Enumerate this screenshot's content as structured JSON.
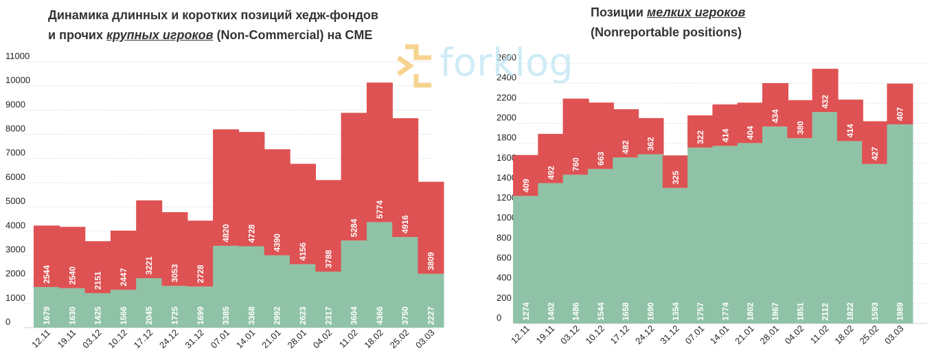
{
  "chart_data": [
    {
      "type": "bar",
      "stacked": true,
      "title_parts": {
        "line1": "Динамика длинных и коротких позиций хедж-фондов",
        "line2_pre": "и прочих ",
        "line2_em": "крупных игроков",
        "line2_post": " (Non-Commercial) на CME"
      },
      "categories": [
        "12.11",
        "19.11",
        "03.12",
        "10.12",
        "17.12",
        "24.12",
        "31.12",
        "07.01",
        "14.01",
        "21.01",
        "28.01",
        "04.02",
        "11.02",
        "18.02",
        "25.02",
        "03.03"
      ],
      "series": [
        {
          "color": "#8fc2a6",
          "values": [
            1679,
            1630,
            1425,
            1566,
            2045,
            1725,
            1699,
            3385,
            3368,
            2992,
            2623,
            2317,
            3604,
            4366,
            3750,
            2227
          ]
        },
        {
          "color": "#de5253",
          "values": [
            2544,
            2540,
            2151,
            2447,
            3221,
            3053,
            2728,
            4820,
            4728,
            4390,
            4156,
            3788,
            5284,
            5774,
            4916,
            3809
          ]
        }
      ],
      "yticks": [
        0,
        1000,
        2000,
        3000,
        4000,
        5000,
        6000,
        7000,
        8000,
        9000,
        10000,
        11000
      ],
      "ylim": [
        0,
        11000
      ],
      "grid": true
    },
    {
      "type": "bar",
      "stacked": true,
      "title_parts": {
        "line1_pre": "Позиции ",
        "line1_em": "мелких игроков",
        "line2": "(Nonreportable positions)"
      },
      "categories": [
        "12.11",
        "19.11",
        "03.12",
        "10.12",
        "17.12",
        "24.12",
        "31.12",
        "07.01",
        "14.01",
        "21.01",
        "28.01",
        "04.02",
        "11.02",
        "18.02",
        "25.02",
        "03.03"
      ],
      "series": [
        {
          "color": "#8fc2a6",
          "values": [
            1274,
            1402,
            1486,
            1544,
            1658,
            1690,
            1354,
            1757,
            1774,
            1802,
            1967,
            1851,
            2112,
            1822,
            1593,
            1989
          ]
        },
        {
          "color": "#de5253",
          "values": [
            409,
            492,
            760,
            663,
            482,
            362,
            325,
            322,
            414,
            404,
            434,
            380,
            432,
            414,
            427,
            407
          ]
        }
      ],
      "yticks": [
        0,
        200,
        400,
        600,
        800,
        1000,
        1200,
        1400,
        1600,
        1800,
        2000,
        2200,
        2400,
        2600
      ],
      "ylim": [
        0,
        2600
      ],
      "grid": true
    }
  ],
  "watermark": {
    "text": "forklog",
    "color": "#bfe6f4",
    "accent": "#f3c46a"
  }
}
